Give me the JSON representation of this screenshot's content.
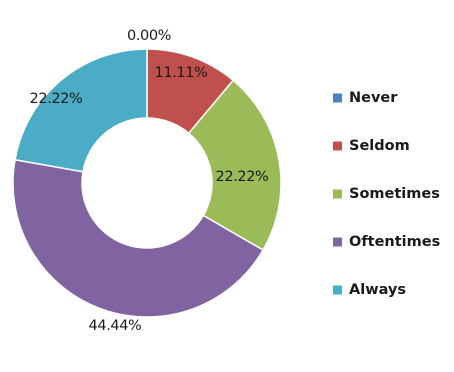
{
  "chart_data": {
    "type": "pie",
    "variant": "doughnut",
    "categories": [
      "Never",
      "Seldom",
      "Sometimes",
      "Oftentimes",
      "Always"
    ],
    "values": [
      0.0,
      11.11,
      22.22,
      44.44,
      22.22
    ],
    "labels": [
      "0.00%",
      "11.11%",
      "22.22%",
      "44.44%",
      "22.22%"
    ],
    "colors": [
      "#4f81bd",
      "#c0504d",
      "#9bbb59",
      "#8064a2",
      "#4bacc6"
    ],
    "legend": {
      "position": "right",
      "entries": [
        "Never",
        "Seldom",
        "Sometimes",
        "Oftentimes",
        "Always"
      ]
    }
  }
}
